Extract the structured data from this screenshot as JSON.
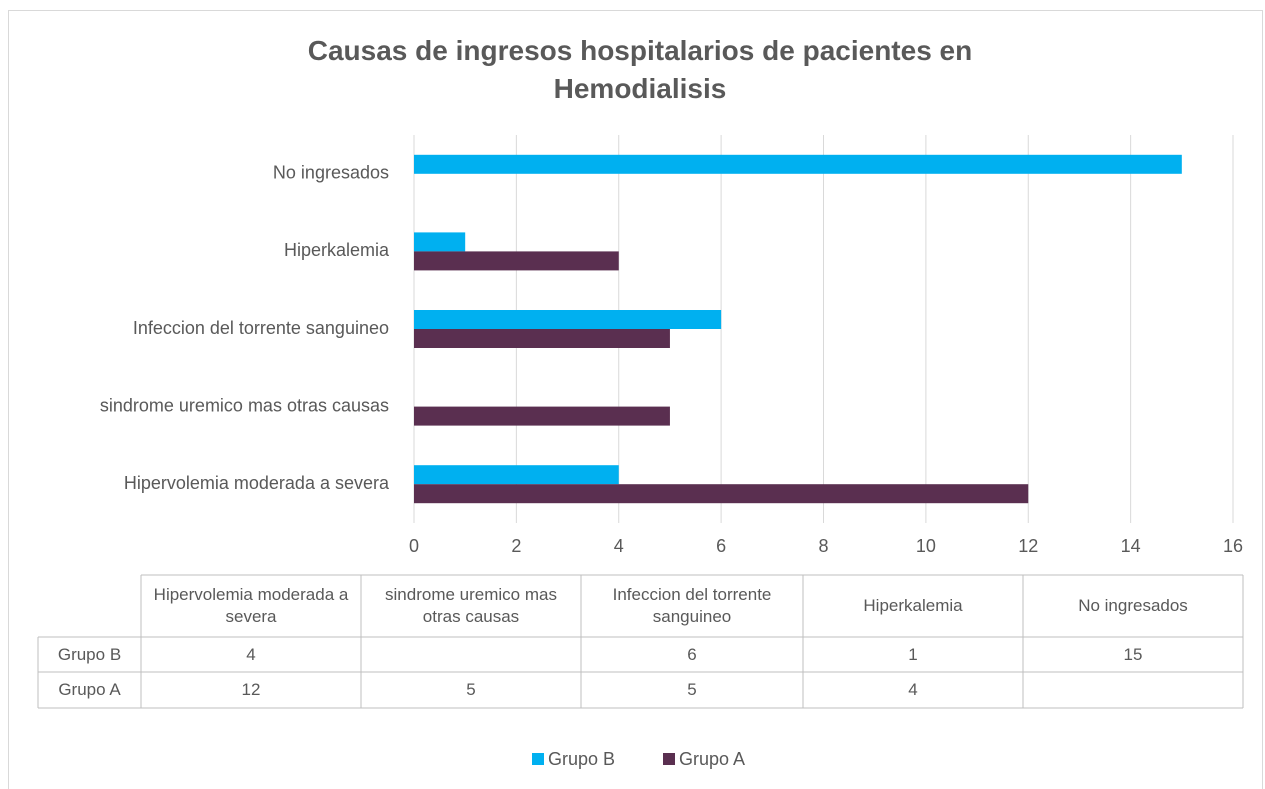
{
  "chart_data": {
    "type": "bar",
    "orientation": "horizontal",
    "title": "Causas de ingresos hospitalarios de pacientes en Hemodialisis",
    "categories": [
      "Hipervolemia moderada a severa",
      "sindrome uremico mas otras causas",
      "Infeccion del torrente sanguineo",
      "Hiperkalemia",
      "No ingresados"
    ],
    "series": [
      {
        "name": "Grupo B",
        "color": "#00b0f0",
        "values": [
          4,
          null,
          6,
          1,
          15
        ]
      },
      {
        "name": "Grupo A",
        "color": "#5a2f50",
        "values": [
          12,
          5,
          5,
          4,
          null
        ]
      }
    ],
    "xlim": [
      0,
      16
    ],
    "xticks": [
      0,
      2,
      4,
      6,
      8,
      10,
      12,
      14,
      16
    ],
    "grid": true,
    "legend": "bottom",
    "data_table": true
  }
}
